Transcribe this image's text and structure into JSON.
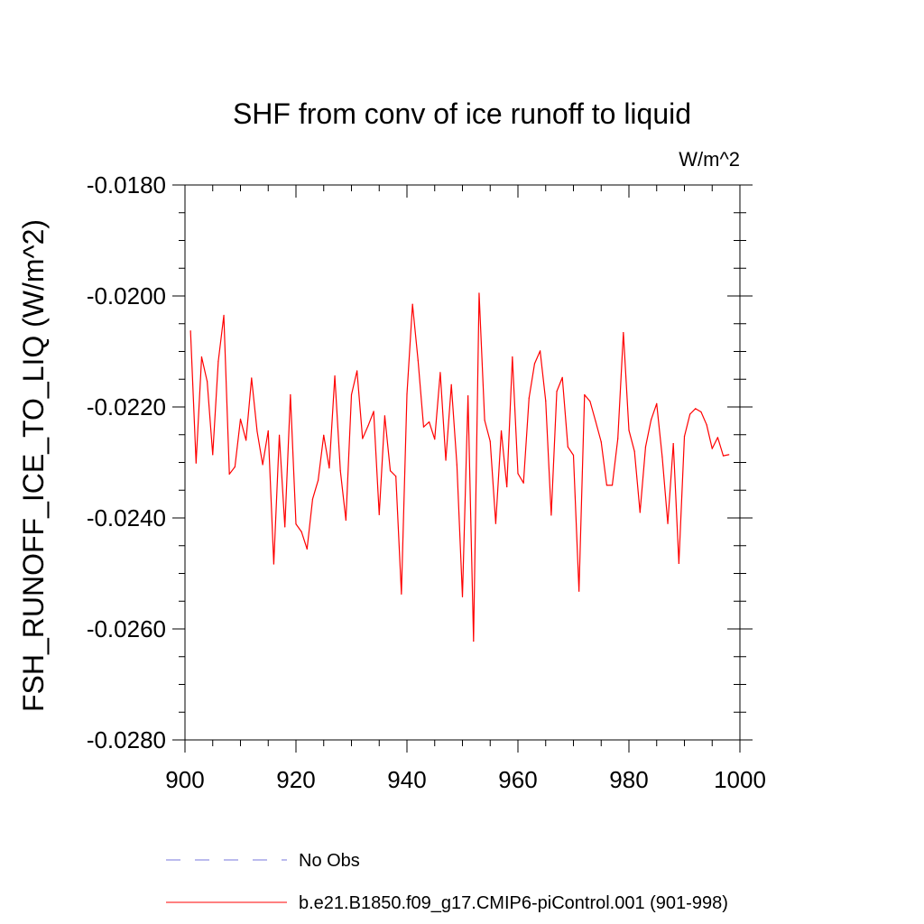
{
  "chart_data": {
    "type": "line",
    "title": "SHF from conv of ice runoff to liquid",
    "units_label": "W/m^2",
    "ylabel": "FSH_RUNOFF_ICE_TO_LIQ  (W/m^2)",
    "xlabel": "",
    "xlim": [
      900,
      1000
    ],
    "ylim": [
      -0.028,
      -0.018
    ],
    "xticks": [
      900,
      920,
      940,
      960,
      980,
      1000
    ],
    "xtick_labels": [
      "900",
      "920",
      "940",
      "960",
      "980",
      "1000"
    ],
    "yticks": [
      -0.018,
      -0.02,
      -0.022,
      -0.024,
      -0.026,
      -0.028
    ],
    "ytick_labels": [
      "-0.0180",
      "-0.0200",
      "-0.0220",
      "-0.0240",
      "-0.0260",
      "-0.0280"
    ],
    "series": [
      {
        "name": "b.e21.B1850.f09_g17.CMIP6-piControl.001 (901-998)",
        "color": "#ff0000",
        "dash": "solid",
        "x": [
          901,
          902,
          903,
          904,
          905,
          906,
          907,
          908,
          909,
          910,
          911,
          912,
          913,
          914,
          915,
          916,
          917,
          918,
          919,
          920,
          921,
          922,
          923,
          924,
          925,
          926,
          927,
          928,
          929,
          930,
          931,
          932,
          933,
          934,
          935,
          936,
          937,
          938,
          939,
          940,
          941,
          942,
          943,
          944,
          945,
          946,
          947,
          948,
          949,
          950,
          951,
          952,
          953,
          954,
          955,
          956,
          957,
          958,
          959,
          960,
          961,
          962,
          963,
          964,
          965,
          966,
          967,
          968,
          969,
          970,
          971,
          972,
          973,
          974,
          975,
          976,
          977,
          978,
          979,
          980,
          981,
          982,
          983,
          984,
          985,
          986,
          987,
          988,
          989,
          990,
          991,
          992,
          993,
          994,
          995,
          996,
          997,
          998
        ],
        "values": [
          -0.02063,
          -0.02301,
          -0.0211,
          -0.02154,
          -0.02286,
          -0.02118,
          -0.02035,
          -0.02321,
          -0.02308,
          -0.02222,
          -0.0226,
          -0.02148,
          -0.02244,
          -0.02304,
          -0.02243,
          -0.02483,
          -0.02251,
          -0.02416,
          -0.02178,
          -0.02411,
          -0.02425,
          -0.02456,
          -0.02366,
          -0.02332,
          -0.02251,
          -0.0231,
          -0.02144,
          -0.02315,
          -0.02404,
          -0.02178,
          -0.02135,
          -0.02257,
          -0.02234,
          -0.02208,
          -0.02394,
          -0.02216,
          -0.02315,
          -0.02325,
          -0.02537,
          -0.02177,
          -0.02015,
          -0.02116,
          -0.02236,
          -0.02227,
          -0.02258,
          -0.02138,
          -0.02296,
          -0.0216,
          -0.02304,
          -0.02542,
          -0.0218,
          -0.02622,
          -0.01995,
          -0.02224,
          -0.02262,
          -0.0241,
          -0.02243,
          -0.02344,
          -0.0211,
          -0.0232,
          -0.02337,
          -0.02184,
          -0.02122,
          -0.02099,
          -0.02189,
          -0.02395,
          -0.02172,
          -0.02147,
          -0.02272,
          -0.02287,
          -0.02532,
          -0.02178,
          -0.0219,
          -0.02226,
          -0.02263,
          -0.02341,
          -0.02341,
          -0.02257,
          -0.02066,
          -0.02242,
          -0.0228,
          -0.0239,
          -0.02272,
          -0.02223,
          -0.02194,
          -0.0229,
          -0.0241,
          -0.02266,
          -0.02482,
          -0.02253,
          -0.02213,
          -0.02203,
          -0.02209,
          -0.02232,
          -0.02275,
          -0.02255,
          -0.02288,
          -0.02286
        ]
      }
    ]
  },
  "legend": [
    {
      "label": "No Obs",
      "color": "#7777dd",
      "dash": "dashed"
    },
    {
      "label": "b.e21.B1850.f09_g17.CMIP6-piControl.001 (901-998)",
      "color": "#ff0000",
      "dash": "solid"
    }
  ]
}
